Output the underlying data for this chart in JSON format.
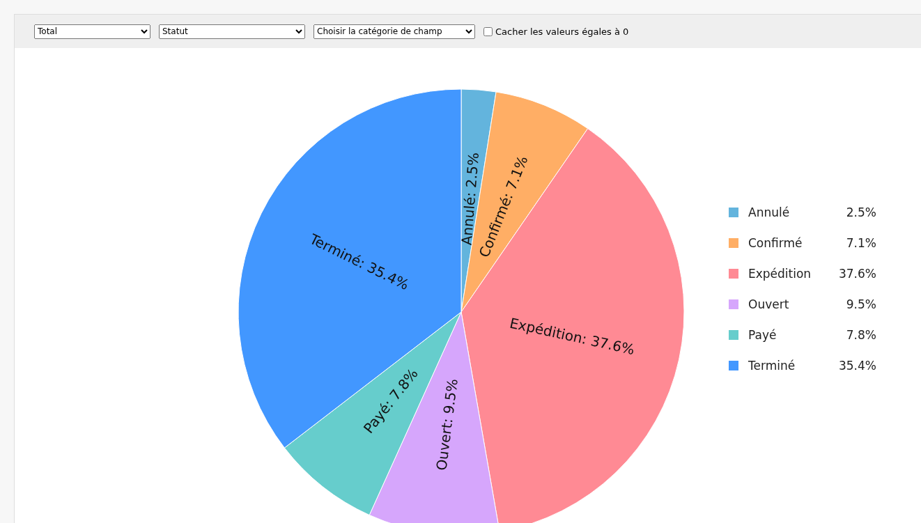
{
  "chart_data": {
    "type": "pie",
    "categories": [
      "Annulé",
      "Confirmé",
      "Expédition",
      "Ouvert",
      "Payé",
      "Terminé"
    ],
    "values": [
      2.5,
      7.1,
      37.6,
      9.5,
      7.8,
      35.4
    ],
    "value_labels": [
      "Annulé: 2.5%",
      "Confirmé: 7.1%",
      "Expédition: 37.6%",
      "Ouvert: 9.5%",
      "Payé: 7.8%",
      "Terminé: 35.4%"
    ],
    "colors": [
      "#63b4dd",
      "#ffae65",
      "#ff8a94",
      "#d6a6fc",
      "#66cdcc",
      "#4297ff"
    ],
    "legend": "right",
    "annotations": [
      "Total",
      "Statut",
      "Choisir la catégorie de champ",
      "Cacher les valeurs égales à 0",
      {
        "text": "2.5%",
        "x": "Annulé"
      },
      {
        "text": "7.1%",
        "x": "Confirmé"
      },
      {
        "text": "37.6%",
        "x": "Expédition"
      },
      {
        "text": "9.5%",
        "x": "Ouvert"
      },
      {
        "text": "7.8%",
        "x": "Payé"
      },
      {
        "text": "35.4%",
        "x": "Terminé"
      }
    ]
  }
}
